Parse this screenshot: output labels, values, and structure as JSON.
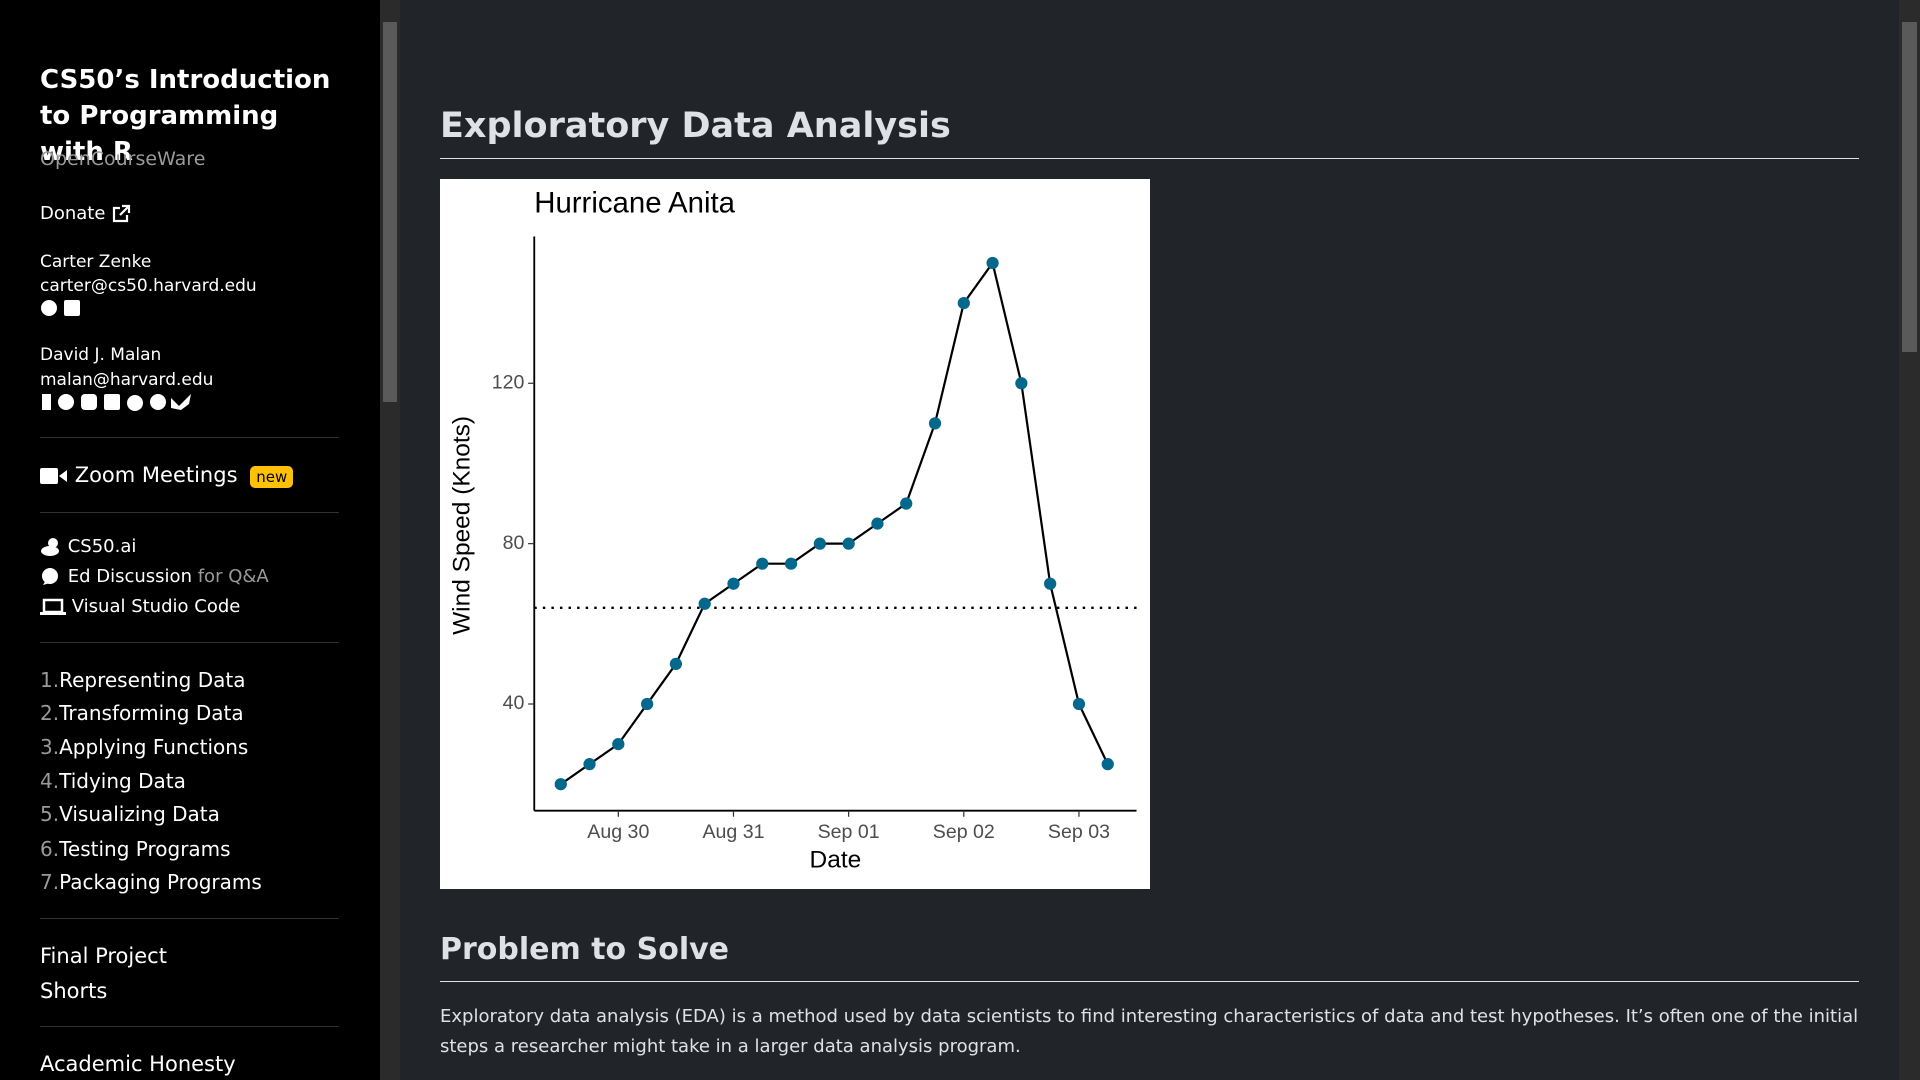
{
  "sidebar": {
    "title": "CS50’s Introduction to Programming with R",
    "subtitle": "OpenCourseWare",
    "donate": "Donate",
    "people": [
      {
        "name": "Carter Zenke",
        "email": "carter@cs50.harvard.edu"
      },
      {
        "name": "David J. Malan",
        "email": "malan@harvard.edu"
      }
    ],
    "zoom": "Zoom Meetings",
    "zoom_badge": "new",
    "tools": {
      "cs50ai": "CS50.ai",
      "ed": "Ed Discussion",
      "ed_note": "for Q&A",
      "vscode": "Visual Studio Code"
    },
    "lessons": [
      {
        "number": "1.",
        "title": "Representing Data"
      },
      {
        "number": "2.",
        "title": "Transforming Data"
      },
      {
        "number": "3.",
        "title": "Applying Functions"
      },
      {
        "number": "4.",
        "title": "Tidying Data"
      },
      {
        "number": "5.",
        "title": "Visualizing Data"
      },
      {
        "number": "6.",
        "title": "Testing Programs"
      },
      {
        "number": "7.",
        "title": "Packaging Programs"
      }
    ],
    "extras": [
      "Final Project",
      "Shorts"
    ],
    "honesty": "Academic Honesty"
  },
  "main": {
    "heading": "Exploratory Data Analysis",
    "section_heading": "Problem to Solve",
    "paragraph": "Exploratory data analysis (EDA) is a method used by data scientists to find interesting characteristics of data and test hypotheses. It’s often one of the initial steps a researcher might take in a larger data analysis program."
  },
  "chart_data": {
    "type": "line",
    "title": "Hurricane Anita",
    "xlabel": "Date",
    "ylabel": "Wind Speed (Knots)",
    "x": [
      29.5,
      29.75,
      30,
      30.25,
      30.5,
      30.75,
      31,
      31.25,
      31.5,
      31.75,
      32,
      32.25,
      32.5,
      32.75,
      33,
      33.25,
      33.5,
      33.75,
      34,
      34.25
    ],
    "values": [
      20,
      25,
      30,
      40,
      50,
      65,
      70,
      75,
      75,
      80,
      80,
      85,
      90,
      110,
      140,
      150,
      120,
      70,
      40,
      25
    ],
    "color": "#04688c",
    "line_color": "#000000",
    "reference_line": 64,
    "xlim": [
      29.27,
      34.5
    ],
    "ylim": [
      13.4,
      156.6
    ],
    "xticks": [
      {
        "value": 30,
        "label": "Aug 30"
      },
      {
        "value": 31,
        "label": "Aug 31"
      },
      {
        "value": 32,
        "label": "Sep 01"
      },
      {
        "value": 33,
        "label": "Sep 02"
      },
      {
        "value": 34,
        "label": "Sep 03"
      }
    ],
    "yticks": [
      40,
      80,
      120
    ]
  }
}
